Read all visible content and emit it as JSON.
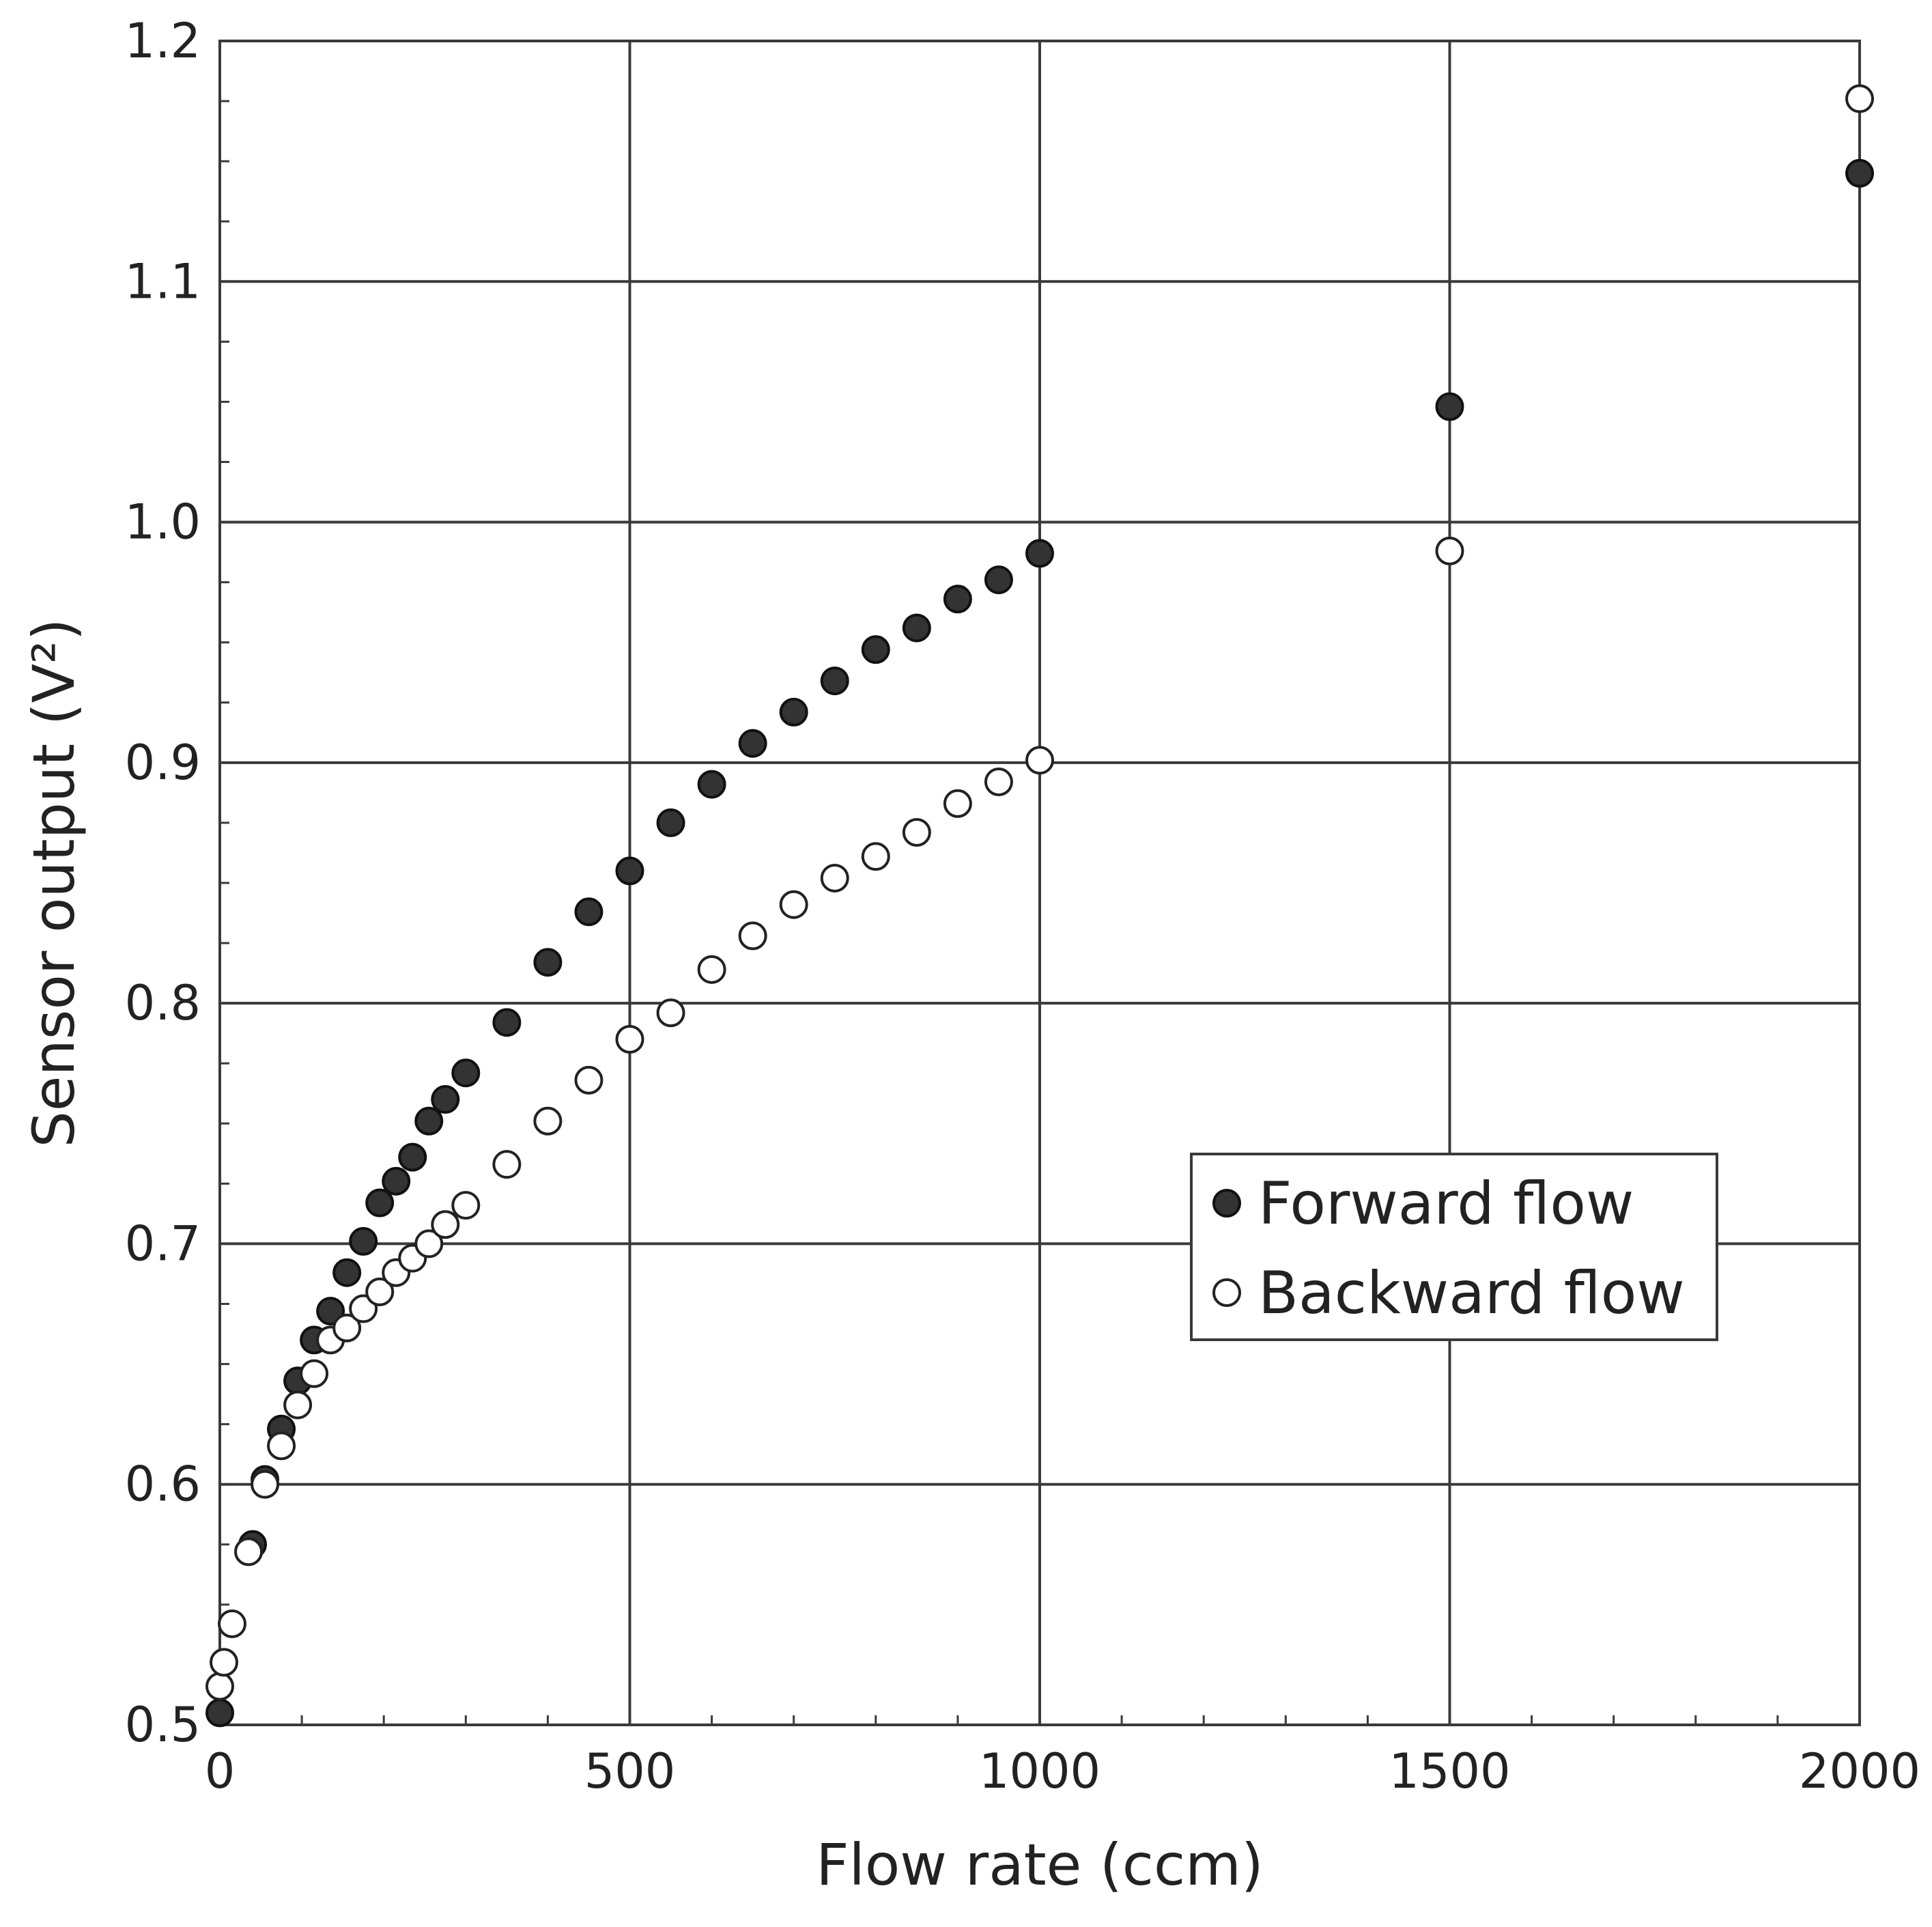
{
  "chart_data": {
    "type": "scatter",
    "title": "",
    "xlabel": "Flow rate (ccm)",
    "ylabel": "Sensor output (V²)",
    "xlim": [
      0,
      2000
    ],
    "ylim": [
      0.5,
      1.2
    ],
    "x_ticks": [
      "0",
      "500",
      "1000",
      "1500",
      "2000"
    ],
    "y_ticks": [
      "0.5",
      "0.6",
      "0.7",
      "0.8",
      "0.9",
      "1.0",
      "1.1",
      "1.2"
    ],
    "grid": true,
    "legend_position": "right-middle",
    "series": [
      {
        "name": "Forward flow",
        "marker": "filled-circle",
        "color": "#333333",
        "points": [
          [
            0,
            0.505
          ],
          [
            40,
            0.575
          ],
          [
            55,
            0.602
          ],
          [
            75,
            0.623
          ],
          [
            95,
            0.643
          ],
          [
            115,
            0.66
          ],
          [
            135,
            0.672
          ],
          [
            155,
            0.688
          ],
          [
            175,
            0.701
          ],
          [
            195,
            0.717
          ],
          [
            215,
            0.726
          ],
          [
            235,
            0.736
          ],
          [
            255,
            0.751
          ],
          [
            275,
            0.76
          ],
          [
            300,
            0.771
          ],
          [
            350,
            0.792
          ],
          [
            400,
            0.817
          ],
          [
            450,
            0.838
          ],
          [
            500,
            0.855
          ],
          [
            550,
            0.875
          ],
          [
            600,
            0.891
          ],
          [
            650,
            0.908
          ],
          [
            700,
            0.921
          ],
          [
            750,
            0.934
          ],
          [
            800,
            0.947
          ],
          [
            850,
            0.956
          ],
          [
            900,
            0.968
          ],
          [
            950,
            0.976
          ],
          [
            1000,
            0.987
          ],
          [
            1500,
            1.048
          ],
          [
            2000,
            1.145
          ]
        ]
      },
      {
        "name": "Backward flow",
        "marker": "open-circle",
        "color": "#ffffff",
        "points": [
          [
            0,
            0.516
          ],
          [
            5,
            0.526
          ],
          [
            15,
            0.542
          ],
          [
            35,
            0.572
          ],
          [
            55,
            0.6
          ],
          [
            75,
            0.616
          ],
          [
            95,
            0.633
          ],
          [
            115,
            0.646
          ],
          [
            135,
            0.66
          ],
          [
            155,
            0.665
          ],
          [
            175,
            0.673
          ],
          [
            195,
            0.68
          ],
          [
            215,
            0.688
          ],
          [
            235,
            0.694
          ],
          [
            255,
            0.7
          ],
          [
            275,
            0.708
          ],
          [
            300,
            0.716
          ],
          [
            350,
            0.733
          ],
          [
            400,
            0.751
          ],
          [
            450,
            0.768
          ],
          [
            500,
            0.785
          ],
          [
            550,
            0.796
          ],
          [
            600,
            0.814
          ],
          [
            650,
            0.828
          ],
          [
            700,
            0.841
          ],
          [
            750,
            0.852
          ],
          [
            800,
            0.861
          ],
          [
            850,
            0.871
          ],
          [
            900,
            0.883
          ],
          [
            950,
            0.892
          ],
          [
            1000,
            0.901
          ],
          [
            1500,
            0.988
          ],
          [
            2000,
            1.176
          ]
        ]
      }
    ]
  }
}
